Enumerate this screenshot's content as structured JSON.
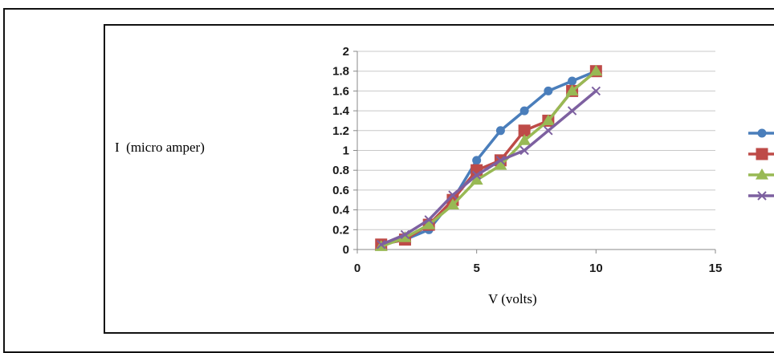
{
  "chart_data": {
    "type": "line",
    "xlabel": "V (volts)",
    "ylabel": "I  (micro amper)",
    "xlim": [
      0,
      15
    ],
    "ylim": [
      0,
      2
    ],
    "x_ticks": [
      "0",
      "5",
      "10",
      "15"
    ],
    "y_ticks": [
      "0",
      "0.2",
      "0.4",
      "0.6",
      "0.8",
      "1",
      "1.2",
      "1.4",
      "1.6",
      "1.8",
      "2"
    ],
    "grid": "horizontal",
    "legend_position": "right (cropped, labels not visible)",
    "series": [
      {
        "color": "#4a7ebb",
        "marker": "circle",
        "x": [
          1,
          2,
          3,
          4,
          5,
          6,
          7,
          8,
          9,
          10
        ],
        "y": [
          0.05,
          0.1,
          0.2,
          0.5,
          0.9,
          1.2,
          1.4,
          1.6,
          1.7,
          1.8
        ]
      },
      {
        "color": "#be4b48",
        "marker": "square",
        "x": [
          1,
          2,
          3,
          4,
          5,
          6,
          7,
          8,
          9,
          10
        ],
        "y": [
          0.05,
          0.1,
          0.25,
          0.5,
          0.8,
          0.9,
          1.2,
          1.3,
          1.6,
          1.8
        ]
      },
      {
        "color": "#98b954",
        "marker": "triangle",
        "x": [
          1,
          2,
          3,
          4,
          5,
          6,
          7,
          8,
          9,
          10
        ],
        "y": [
          0.03,
          0.12,
          0.25,
          0.45,
          0.7,
          0.85,
          1.1,
          1.3,
          1.6,
          1.8
        ]
      },
      {
        "color": "#7d60a0",
        "marker": "x",
        "x": [
          1,
          2,
          3,
          4,
          5,
          6,
          7,
          8,
          9,
          10
        ],
        "y": [
          0.05,
          0.15,
          0.3,
          0.55,
          0.75,
          0.9,
          1.0,
          1.2,
          1.4,
          1.6
        ]
      }
    ]
  }
}
